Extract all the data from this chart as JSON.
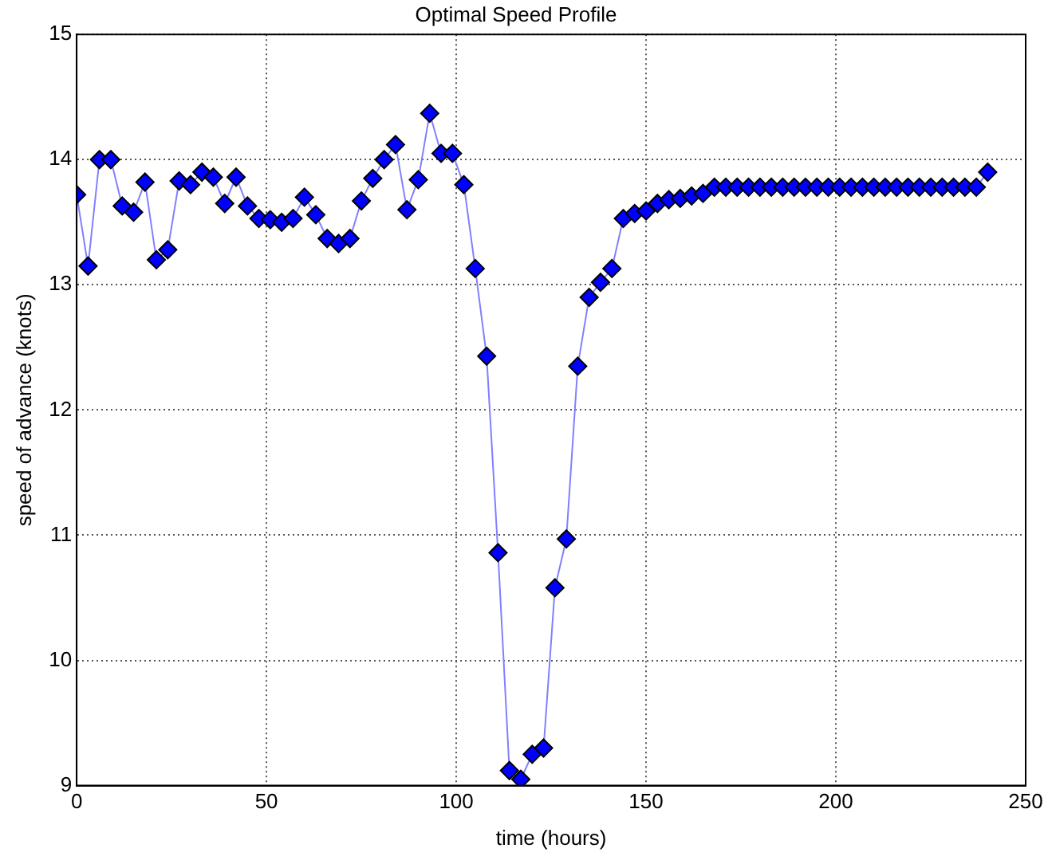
{
  "chart_data": {
    "type": "line",
    "title": "Optimal Speed Profile",
    "xlabel": "time (hours)",
    "ylabel": "speed of advance (knots)",
    "x": [
      0,
      3,
      6,
      9,
      12,
      15,
      18,
      21,
      24,
      27,
      30,
      33,
      36,
      39,
      42,
      45,
      48,
      51,
      54,
      57,
      60,
      63,
      66,
      69,
      72,
      75,
      78,
      81,
      84,
      87,
      90,
      93,
      96,
      99,
      102,
      105,
      108,
      111,
      114,
      117,
      120,
      123,
      126,
      129,
      132,
      135,
      138,
      141,
      144,
      147,
      150,
      153,
      156,
      159,
      162,
      165,
      168,
      171,
      174,
      177,
      180,
      183,
      186,
      189,
      192,
      195,
      198,
      201,
      204,
      207,
      210,
      213,
      216,
      219,
      222,
      225,
      228,
      231,
      234,
      237,
      240
    ],
    "series": [
      {
        "color": "#0000ff",
        "values": [
          13.72,
          13.15,
          14.0,
          14.0,
          13.63,
          13.58,
          13.82,
          13.2,
          13.28,
          13.83,
          13.8,
          13.9,
          13.86,
          13.65,
          13.86,
          13.63,
          13.53,
          13.52,
          13.5,
          13.53,
          13.7,
          13.56,
          13.37,
          13.33,
          13.37,
          13.67,
          13.85,
          14.0,
          14.12,
          13.6,
          13.84,
          14.37,
          14.05,
          14.05,
          13.8,
          13.13,
          12.43,
          10.86,
          9.12,
          9.05,
          9.25,
          9.3,
          10.58,
          10.97,
          12.35,
          12.9,
          13.02,
          13.13,
          13.53,
          13.57,
          13.59,
          13.65,
          13.68,
          13.69,
          13.71,
          13.73,
          13.78,
          13.78,
          13.78,
          13.78,
          13.78,
          13.78,
          13.78,
          13.78,
          13.78,
          13.78,
          13.78,
          13.78,
          13.78,
          13.78,
          13.78,
          13.78,
          13.78,
          13.78,
          13.78,
          13.78,
          13.78,
          13.78,
          13.78,
          13.78,
          13.9
        ]
      }
    ],
    "xlim": [
      0,
      250
    ],
    "xticks": [
      0,
      50,
      100,
      150,
      200,
      250
    ],
    "ylim": [
      9,
      15
    ],
    "yticks": [
      9,
      10,
      11,
      12,
      13,
      14,
      15
    ],
    "grid": true,
    "legend": false,
    "marker": "diamond",
    "line_style": "solid"
  }
}
